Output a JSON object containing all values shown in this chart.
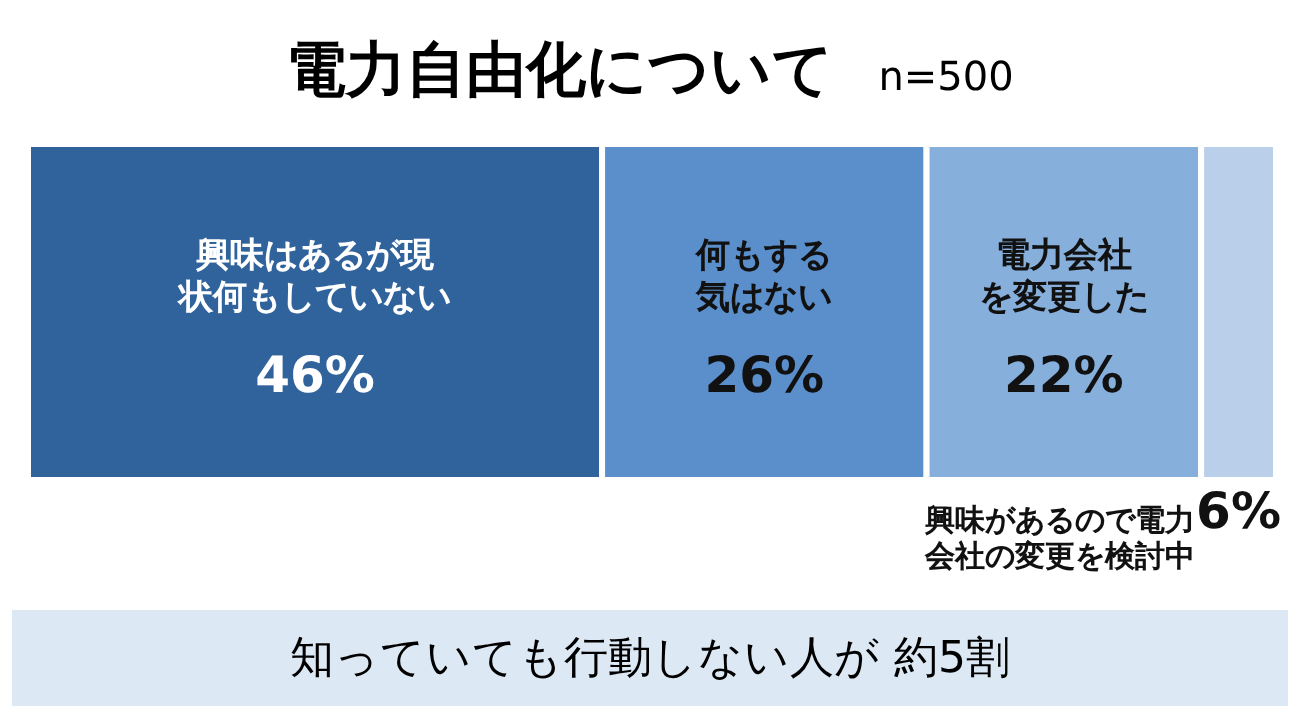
{
  "chart_data": {
    "type": "bar",
    "title": "電力自由化について",
    "subtitle": "n=500",
    "orientation": "horizontal",
    "stacked": true,
    "categories": [
      null
    ],
    "series": [
      {
        "name": "興味はあるが現状何もしていない",
        "color": "#30639b",
        "values": [
          46
        ],
        "value_labels": [
          "46%"
        ]
      },
      {
        "name": "何もする気はない",
        "color": "#5b8fcb",
        "values": [
          26
        ],
        "value_labels": [
          "26%"
        ]
      },
      {
        "name": "電力会社を変更した",
        "color": "#86afdc",
        "values": [
          22
        ],
        "value_labels": [
          "22%"
        ]
      },
      {
        "name": "興味があるので電力会社の変更を検討中",
        "color": "#b9cfea",
        "values": [
          6
        ],
        "value_labels": [
          "6%"
        ]
      }
    ],
    "annotations": [
      "知っていても行動しない人が 約5割"
    ]
  }
}
